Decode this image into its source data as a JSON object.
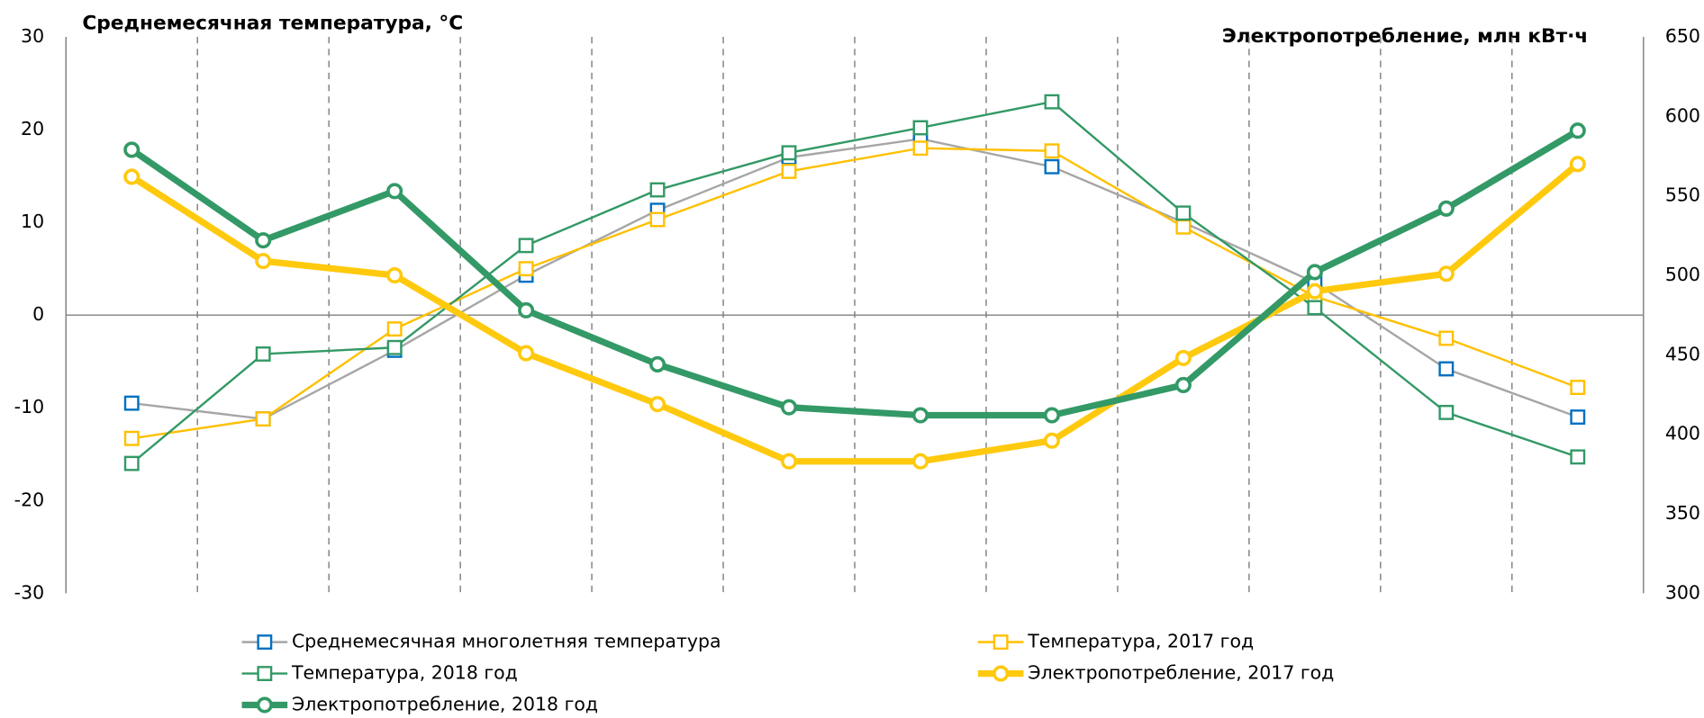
{
  "chart_data": {
    "type": "line",
    "title": "Среднемесячная температура, °C",
    "y2_title": "Электропотребление, млн кВт·ч",
    "categories": [
      null,
      null,
      null,
      null,
      null,
      null,
      null,
      null,
      null,
      null,
      null,
      null
    ],
    "ylim": [
      -30,
      30
    ],
    "yticks": [
      -30,
      -20,
      -10,
      0,
      10,
      20,
      30
    ],
    "y2lim": [
      300,
      650
    ],
    "y2ticks": [
      300,
      350,
      400,
      450,
      500,
      550,
      600,
      650
    ],
    "grid": false,
    "legend": "bottom",
    "series": [
      {
        "name": "Среднемесячная многолетняя температура",
        "color": "#a6a6a6",
        "marker_color": "#0070c0",
        "marker": "square",
        "line_width": 2,
        "values": [
          -9.5,
          -11.2,
          -3.8,
          4.3,
          11.3,
          17,
          19,
          16,
          10,
          3.5,
          -5.8,
          -11
        ]
      },
      {
        "name": "Температура, 2017 год",
        "color": "#ffc000",
        "marker_color": "#ffc000",
        "marker": "square",
        "line_width": 2,
        "values": [
          -13.3,
          -11.2,
          -1.5,
          5,
          10.3,
          15.5,
          18,
          17.7,
          9.5,
          2,
          -2.5,
          -7.8
        ]
      },
      {
        "name": "Температура, 2018 год",
        "color": "#339966",
        "marker_color": "#339966",
        "marker": "square",
        "line_width": 2,
        "values": [
          -16,
          -4.2,
          -3.5,
          7.5,
          13.5,
          17.5,
          20.2,
          23,
          11,
          0.8,
          -10.5,
          -15.3
        ]
      },
      {
        "name": "Электропотребление, 2017 год",
        "color": "#ffc90e",
        "marker_color": "#ffc90e",
        "marker": "circle",
        "line_width": 6,
        "axis": "y2",
        "values": [
          562,
          509,
          500,
          451,
          419,
          383,
          383,
          396,
          448,
          490,
          501,
          570
        ]
      },
      {
        "name": "Электропотребление, 2018 год",
        "color": "#339966",
        "marker_color": "#339966",
        "marker": "circle",
        "line_width": 6,
        "axis": "y2",
        "values": [
          579,
          522,
          553,
          478,
          444,
          417,
          412,
          412,
          431,
          502,
          542,
          591
        ]
      }
    ]
  }
}
